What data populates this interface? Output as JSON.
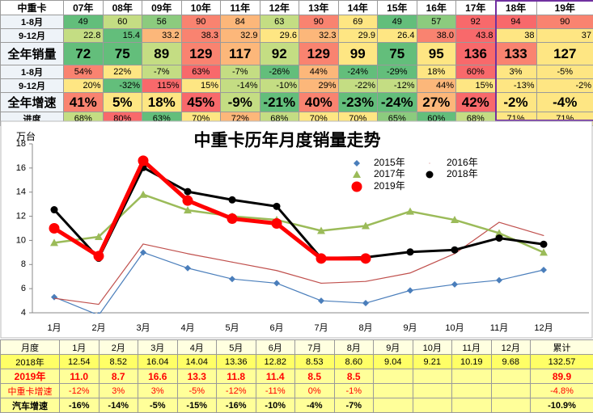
{
  "top_table": {
    "header": [
      "中重卡",
      "07年",
      "08年",
      "09年",
      "10年",
      "11年",
      "12年",
      "13年",
      "14年",
      "15年",
      "16年",
      "17年",
      "18年",
      "19年"
    ],
    "rows": [
      {
        "label": "1-8月",
        "cells": [
          "49",
          "60",
          "56",
          "90",
          "84",
          "63",
          "90",
          "69",
          "49",
          "57",
          "92",
          "94",
          "90"
        ],
        "fills": [
          "#63be7b",
          "#c4dd83",
          "#8ccb7e",
          "#f98370",
          "#fcb77a",
          "#c4dd83",
          "#f98370",
          "#fee683",
          "#63be7b",
          "#8ccb7e",
          "#f8696b",
          "#f8696b",
          "#f98370"
        ]
      },
      {
        "label": "9-12月",
        "cells": [
          "22.8",
          "15.4",
          "33.2",
          "38.3",
          "32.9",
          "29.6",
          "32.3",
          "29.9",
          "26.4",
          "38.0",
          "43.8",
          "38",
          "37"
        ],
        "fills": [
          "#c4dd83",
          "#63be7b",
          "#fcb77a",
          "#f98370",
          "#fcb77a",
          "#fee683",
          "#fcb77a",
          "#fee683",
          "#fee683",
          "#f98370",
          "#f8696b",
          "#fee683",
          "#fee683"
        ]
      },
      {
        "label": "全年销量",
        "cells": [
          "72",
          "75",
          "89",
          "129",
          "117",
          "92",
          "129",
          "99",
          "75",
          "95",
          "136",
          "133",
          "127"
        ],
        "fills": [
          "#63be7b",
          "#63be7b",
          "#c4dd83",
          "#f98370",
          "#fcb77a",
          "#c4dd83",
          "#f98370",
          "#fee683",
          "#63be7b",
          "#fee683",
          "#f8696b",
          "#f98370",
          "#fee683"
        ]
      },
      {
        "label": "1-8月",
        "cells": [
          "54%",
          "22%",
          "-7%",
          "63%",
          "-7%",
          "-26%",
          "44%",
          "-24%",
          "-29%",
          "18%",
          "60%",
          "3%",
          "-5%"
        ],
        "fills": [
          "#f98370",
          "#fee683",
          "#c4dd83",
          "#f8696b",
          "#c4dd83",
          "#63be7b",
          "#fcb77a",
          "#63be7b",
          "#63be7b",
          "#fee683",
          "#f8696b",
          "#fee683",
          "#fee683"
        ]
      },
      {
        "label": "9-12月",
        "cells": [
          "20%",
          "-32%",
          "115%",
          "15%",
          "-14%",
          "-10%",
          "29%",
          "-22%",
          "-12%",
          "44%",
          "15%",
          "-13%",
          "-2%"
        ],
        "fills": [
          "#fee683",
          "#63be7b",
          "#f8696b",
          "#fee683",
          "#c4dd83",
          "#c4dd83",
          "#fcb77a",
          "#c4dd83",
          "#c4dd83",
          "#fcb77a",
          "#fee683",
          "#fee683",
          "#fee683"
        ]
      },
      {
        "label": "全年增速",
        "cells": [
          "41%",
          "5%",
          "18%",
          "45%",
          "-9%",
          "-21%",
          "40%",
          "-23%",
          "-24%",
          "27%",
          "42%",
          "-2%",
          "-4%"
        ],
        "fills": [
          "#f98370",
          "#fee683",
          "#fee683",
          "#f8696b",
          "#c4dd83",
          "#63be7b",
          "#f98370",
          "#63be7b",
          "#63be7b",
          "#fcb77a",
          "#f8696b",
          "#fee683",
          "#fee683"
        ]
      },
      {
        "label": "进度",
        "cells": [
          "68%",
          "80%",
          "63%",
          "70%",
          "72%",
          "68%",
          "70%",
          "70%",
          "65%",
          "60%",
          "68%",
          "71%",
          "71%"
        ],
        "fills": [
          "#c4dd83",
          "#f8696b",
          "#63be7b",
          "#fee683",
          "#fcb77a",
          "#c4dd83",
          "#fee683",
          "#fee683",
          "#8ccb7e",
          "#63be7b",
          "#c4dd83",
          "#fee683",
          "#fee683"
        ]
      }
    ]
  },
  "chart_data": {
    "type": "line",
    "title": "中重卡历年月度销量走势",
    "y_label": "万台",
    "categories": [
      "1月",
      "2月",
      "3月",
      "4月",
      "5月",
      "6月",
      "7月",
      "8月",
      "9月",
      "10月",
      "11月",
      "12月"
    ],
    "ylim": [
      4,
      18
    ],
    "yticks": [
      4,
      6,
      8,
      10,
      12,
      14,
      16,
      18
    ],
    "series": [
      {
        "name": "2015年",
        "color": "#4a7ebb",
        "line_width": 1.2,
        "marker": "diamond",
        "values": [
          5.3,
          3.8,
          9.0,
          7.7,
          6.8,
          6.45,
          5.0,
          4.8,
          5.85,
          6.35,
          6.7,
          7.55
        ]
      },
      {
        "name": "2016年",
        "color": "#c0504d",
        "line_width": 1.2,
        "marker": "none",
        "values": [
          5.2,
          4.7,
          9.7,
          8.9,
          8.2,
          7.5,
          6.45,
          6.6,
          7.3,
          8.9,
          11.5,
          10.4
        ]
      },
      {
        "name": "2017年",
        "color": "#9bbb59",
        "line_width": 2.5,
        "marker": "triangle",
        "values": [
          9.8,
          10.3,
          13.8,
          12.5,
          12.0,
          11.7,
          10.8,
          11.2,
          12.4,
          11.7,
          10.6,
          9.0
        ]
      },
      {
        "name": "2018年",
        "color": "#000000",
        "line_width": 3,
        "marker": "circle",
        "values": [
          12.54,
          8.52,
          16.04,
          14.04,
          13.36,
          12.82,
          8.53,
          8.6,
          9.04,
          9.21,
          10.19,
          9.68
        ]
      },
      {
        "name": "2019年",
        "color": "#ff0000",
        "line_width": 5,
        "marker": "bigcircle",
        "values": [
          11.0,
          8.7,
          16.6,
          13.3,
          11.8,
          11.4,
          8.5,
          8.5,
          null,
          null,
          null,
          null
        ]
      }
    ]
  },
  "bottom_table": {
    "header": [
      "月度",
      "1月",
      "2月",
      "3月",
      "4月",
      "5月",
      "6月",
      "7月",
      "8月",
      "9月",
      "10月",
      "11月",
      "12月",
      "累计"
    ],
    "rows": [
      {
        "label": "2018年",
        "cells": [
          "12.54",
          "8.52",
          "16.04",
          "14.04",
          "13.36",
          "12.82",
          "8.53",
          "8.60",
          "9.04",
          "9.21",
          "10.19",
          "9.68",
          "132.57"
        ]
      },
      {
        "label": "2019年",
        "cells": [
          "11.0",
          "8.7",
          "16.6",
          "13.3",
          "11.8",
          "11.4",
          "8.5",
          "8.5",
          null,
          null,
          null,
          null,
          "89.9"
        ]
      },
      {
        "label": "中重卡增速",
        "cells": [
          "-12%",
          "3%",
          "3%",
          "-5%",
          "-12%",
          "-11%",
          "0%",
          "-1%",
          null,
          null,
          null,
          null,
          "-4.8%"
        ]
      },
      {
        "label": "汽车增速",
        "cells": [
          "-16%",
          "-14%",
          "-5%",
          "-15%",
          "-16%",
          "-10%",
          "-4%",
          "-7%",
          null,
          null,
          null,
          null,
          "-10.9%"
        ]
      }
    ]
  }
}
